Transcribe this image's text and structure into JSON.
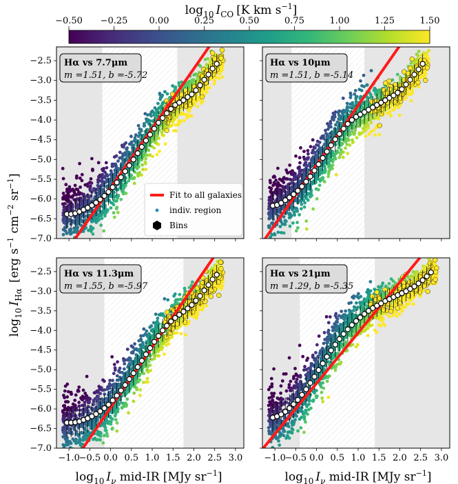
{
  "chart_data": {
    "type": "scatter",
    "colorbar": {
      "label": "log$_{10}$ I_CO [K km s$^{-1}$]",
      "label_main": "log",
      "label_sub": "10",
      "label_var": "I",
      "label_varsub": "CO",
      "label_units": "[K km s",
      "label_units_sup": "−1",
      "label_units_end": "]",
      "range": [
        -0.5,
        1.5
      ],
      "ticks": [
        "−0.50",
        "−0.25",
        "0.00",
        "0.25",
        "0.50",
        "0.75",
        "1.00",
        "1.25",
        "1.50"
      ],
      "colormap": [
        "#440154",
        "#482878",
        "#3e4989",
        "#31688e",
        "#26828e",
        "#1f9e89",
        "#35b779",
        "#6ece58",
        "#b5de2b",
        "#fde725"
      ]
    },
    "xlabel": "log₁₀ Iᵥ mid-IR [MJy sr⁻¹]",
    "xlabel_parts": {
      "main": "log",
      "sub": "10",
      "var": "I",
      "varsub": "ν",
      "rest": " mid-IR [MJy sr",
      "sup": "−1",
      "end": "]"
    },
    "ylabel_parts": {
      "main": "log",
      "sub": "10",
      "var": "I",
      "varsub": "Hα",
      "rest": " [erg s",
      "sup1": "−1",
      "mid": " cm",
      "sup2": "−2",
      "mid2": " sr",
      "sup3": "−1",
      "end": "]"
    },
    "xlim": [
      -1.3,
      3.2
    ],
    "ylim": [
      -7.0,
      -2.15
    ],
    "xticks": [
      "−1.0",
      "−0.5",
      "0.0",
      "0.5",
      "1.0",
      "1.5",
      "2.0",
      "2.5",
      "3.0"
    ],
    "xtick_values": [
      -1.0,
      -0.5,
      0.0,
      0.5,
      1.0,
      1.5,
      2.0,
      2.5,
      3.0
    ],
    "yticks": [
      "−2.5",
      "−3.0",
      "−3.5",
      "−4.0",
      "−4.5",
      "−5.0",
      "−5.5",
      "−6.0",
      "−6.5",
      "−7.0"
    ],
    "ytick_values": [
      -2.5,
      -3.0,
      -3.5,
      -4.0,
      -4.5,
      -5.0,
      -5.5,
      -6.0,
      -6.5,
      -7.0
    ],
    "legend": {
      "placement": "lower-right of top-left panel",
      "entries": [
        "Fit to all galaxies",
        "indiv. region",
        "Bins"
      ]
    },
    "panels": [
      {
        "title": "Hα vs 7.7μm",
        "m_label": "m =1.51, b =-5.72",
        "m": 1.51,
        "b": -5.72,
        "shade_left": -0.2,
        "shade_right": 1.6,
        "bins_x": [
          -1.05,
          -0.95,
          -0.85,
          -0.75,
          -0.65,
          -0.55,
          -0.45,
          -0.35,
          -0.25,
          -0.15,
          -0.05,
          0.05,
          0.15,
          0.25,
          0.35,
          0.45,
          0.55,
          0.65,
          0.75,
          0.85,
          0.95,
          1.05,
          1.15,
          1.25,
          1.35,
          1.45,
          1.55,
          1.65,
          1.75,
          1.85,
          1.95,
          2.05,
          2.15,
          2.25,
          2.35,
          2.45,
          2.55
        ],
        "bins_y": [
          -6.38,
          -6.38,
          -6.36,
          -6.32,
          -6.27,
          -6.22,
          -6.16,
          -6.09,
          -6.01,
          -5.92,
          -5.82,
          -5.7,
          -5.58,
          -5.45,
          -5.3,
          -5.15,
          -5.0,
          -4.84,
          -4.68,
          -4.52,
          -4.37,
          -4.22,
          -4.07,
          -3.95,
          -3.83,
          -3.72,
          -3.62,
          -3.56,
          -3.5,
          -3.42,
          -3.35,
          -3.25,
          -3.12,
          -2.98,
          -2.85,
          -2.7,
          -2.58
        ]
      },
      {
        "title": "Hα vs 10μm",
        "m_label": "m =1.51, b =-5.14",
        "m": 1.51,
        "b": -5.14,
        "shade_left": -0.6,
        "shade_right": 1.15,
        "bins_x": [
          -1.05,
          -0.95,
          -0.85,
          -0.75,
          -0.65,
          -0.55,
          -0.45,
          -0.35,
          -0.25,
          -0.15,
          -0.05,
          0.05,
          0.15,
          0.25,
          0.35,
          0.45,
          0.55,
          0.65,
          0.75,
          0.85,
          0.95,
          1.05,
          1.15,
          1.25,
          1.35,
          1.45,
          1.55,
          1.65,
          1.75,
          1.85,
          1.95,
          2.05,
          2.15,
          2.25,
          2.35,
          2.45,
          2.55
        ],
        "bins_y": [
          -6.17,
          -6.15,
          -6.1,
          -6.03,
          -5.96,
          -5.88,
          -5.79,
          -5.68,
          -5.56,
          -5.43,
          -5.28,
          -5.12,
          -4.96,
          -4.8,
          -4.64,
          -4.49,
          -4.35,
          -4.22,
          -4.1,
          -4.0,
          -3.92,
          -3.86,
          -3.8,
          -3.74,
          -3.68,
          -3.62,
          -3.56,
          -3.5,
          -3.44,
          -3.38,
          -3.31,
          -3.22,
          -3.1,
          -2.98,
          -2.85,
          -2.72,
          -2.58
        ]
      },
      {
        "title": "Hα vs 11.3μm",
        "m_label": "m =1.55, b =-5.97",
        "m": 1.55,
        "b": -5.97,
        "shade_left": -0.15,
        "shade_right": 1.75,
        "bins_x": [
          -1.05,
          -0.95,
          -0.85,
          -0.75,
          -0.65,
          -0.55,
          -0.45,
          -0.35,
          -0.25,
          -0.15,
          -0.05,
          0.05,
          0.15,
          0.25,
          0.35,
          0.45,
          0.55,
          0.65,
          0.75,
          0.85,
          0.95,
          1.05,
          1.15,
          1.25,
          1.35,
          1.45,
          1.55,
          1.65,
          1.75,
          1.85,
          1.95,
          2.05,
          2.15,
          2.25,
          2.35,
          2.45,
          2.55
        ],
        "bins_y": [
          -6.35,
          -6.35,
          -6.34,
          -6.32,
          -6.28,
          -6.24,
          -6.19,
          -6.13,
          -6.06,
          -5.98,
          -5.89,
          -5.78,
          -5.66,
          -5.53,
          -5.39,
          -5.24,
          -5.09,
          -4.93,
          -4.77,
          -4.61,
          -4.45,
          -4.29,
          -4.14,
          -4.0,
          -3.88,
          -3.77,
          -3.68,
          -3.6,
          -3.52,
          -3.44,
          -3.35,
          -3.24,
          -3.12,
          -2.98,
          -2.84,
          -2.7,
          -2.58
        ]
      },
      {
        "title": "Hα vs 21μm",
        "m_label": "m =1.29, b =-5.35",
        "m": 1.29,
        "b": -5.35,
        "shade_left": -0.4,
        "shade_right": 1.4,
        "bins_x": [
          -1.05,
          -0.95,
          -0.85,
          -0.75,
          -0.65,
          -0.55,
          -0.45,
          -0.35,
          -0.25,
          -0.15,
          -0.05,
          0.05,
          0.15,
          0.25,
          0.35,
          0.45,
          0.55,
          0.65,
          0.75,
          0.85,
          0.95,
          1.05,
          1.15,
          1.25,
          1.35,
          1.45,
          1.55,
          1.65,
          1.75,
          1.85,
          1.95,
          2.05,
          2.15,
          2.25,
          2.35,
          2.45,
          2.55,
          2.65,
          2.75
        ],
        "bins_y": [
          -6.22,
          -6.19,
          -6.14,
          -6.07,
          -5.98,
          -5.88,
          -5.77,
          -5.64,
          -5.5,
          -5.34,
          -5.18,
          -5.01,
          -4.84,
          -4.67,
          -4.51,
          -4.36,
          -4.22,
          -4.09,
          -3.97,
          -3.86,
          -3.76,
          -3.67,
          -3.58,
          -3.5,
          -3.43,
          -3.37,
          -3.31,
          -3.25,
          -3.2,
          -3.15,
          -3.1,
          -3.05,
          -3.0,
          -2.94,
          -2.88,
          -2.8,
          -2.72,
          -2.62,
          -2.52
        ]
      }
    ]
  }
}
